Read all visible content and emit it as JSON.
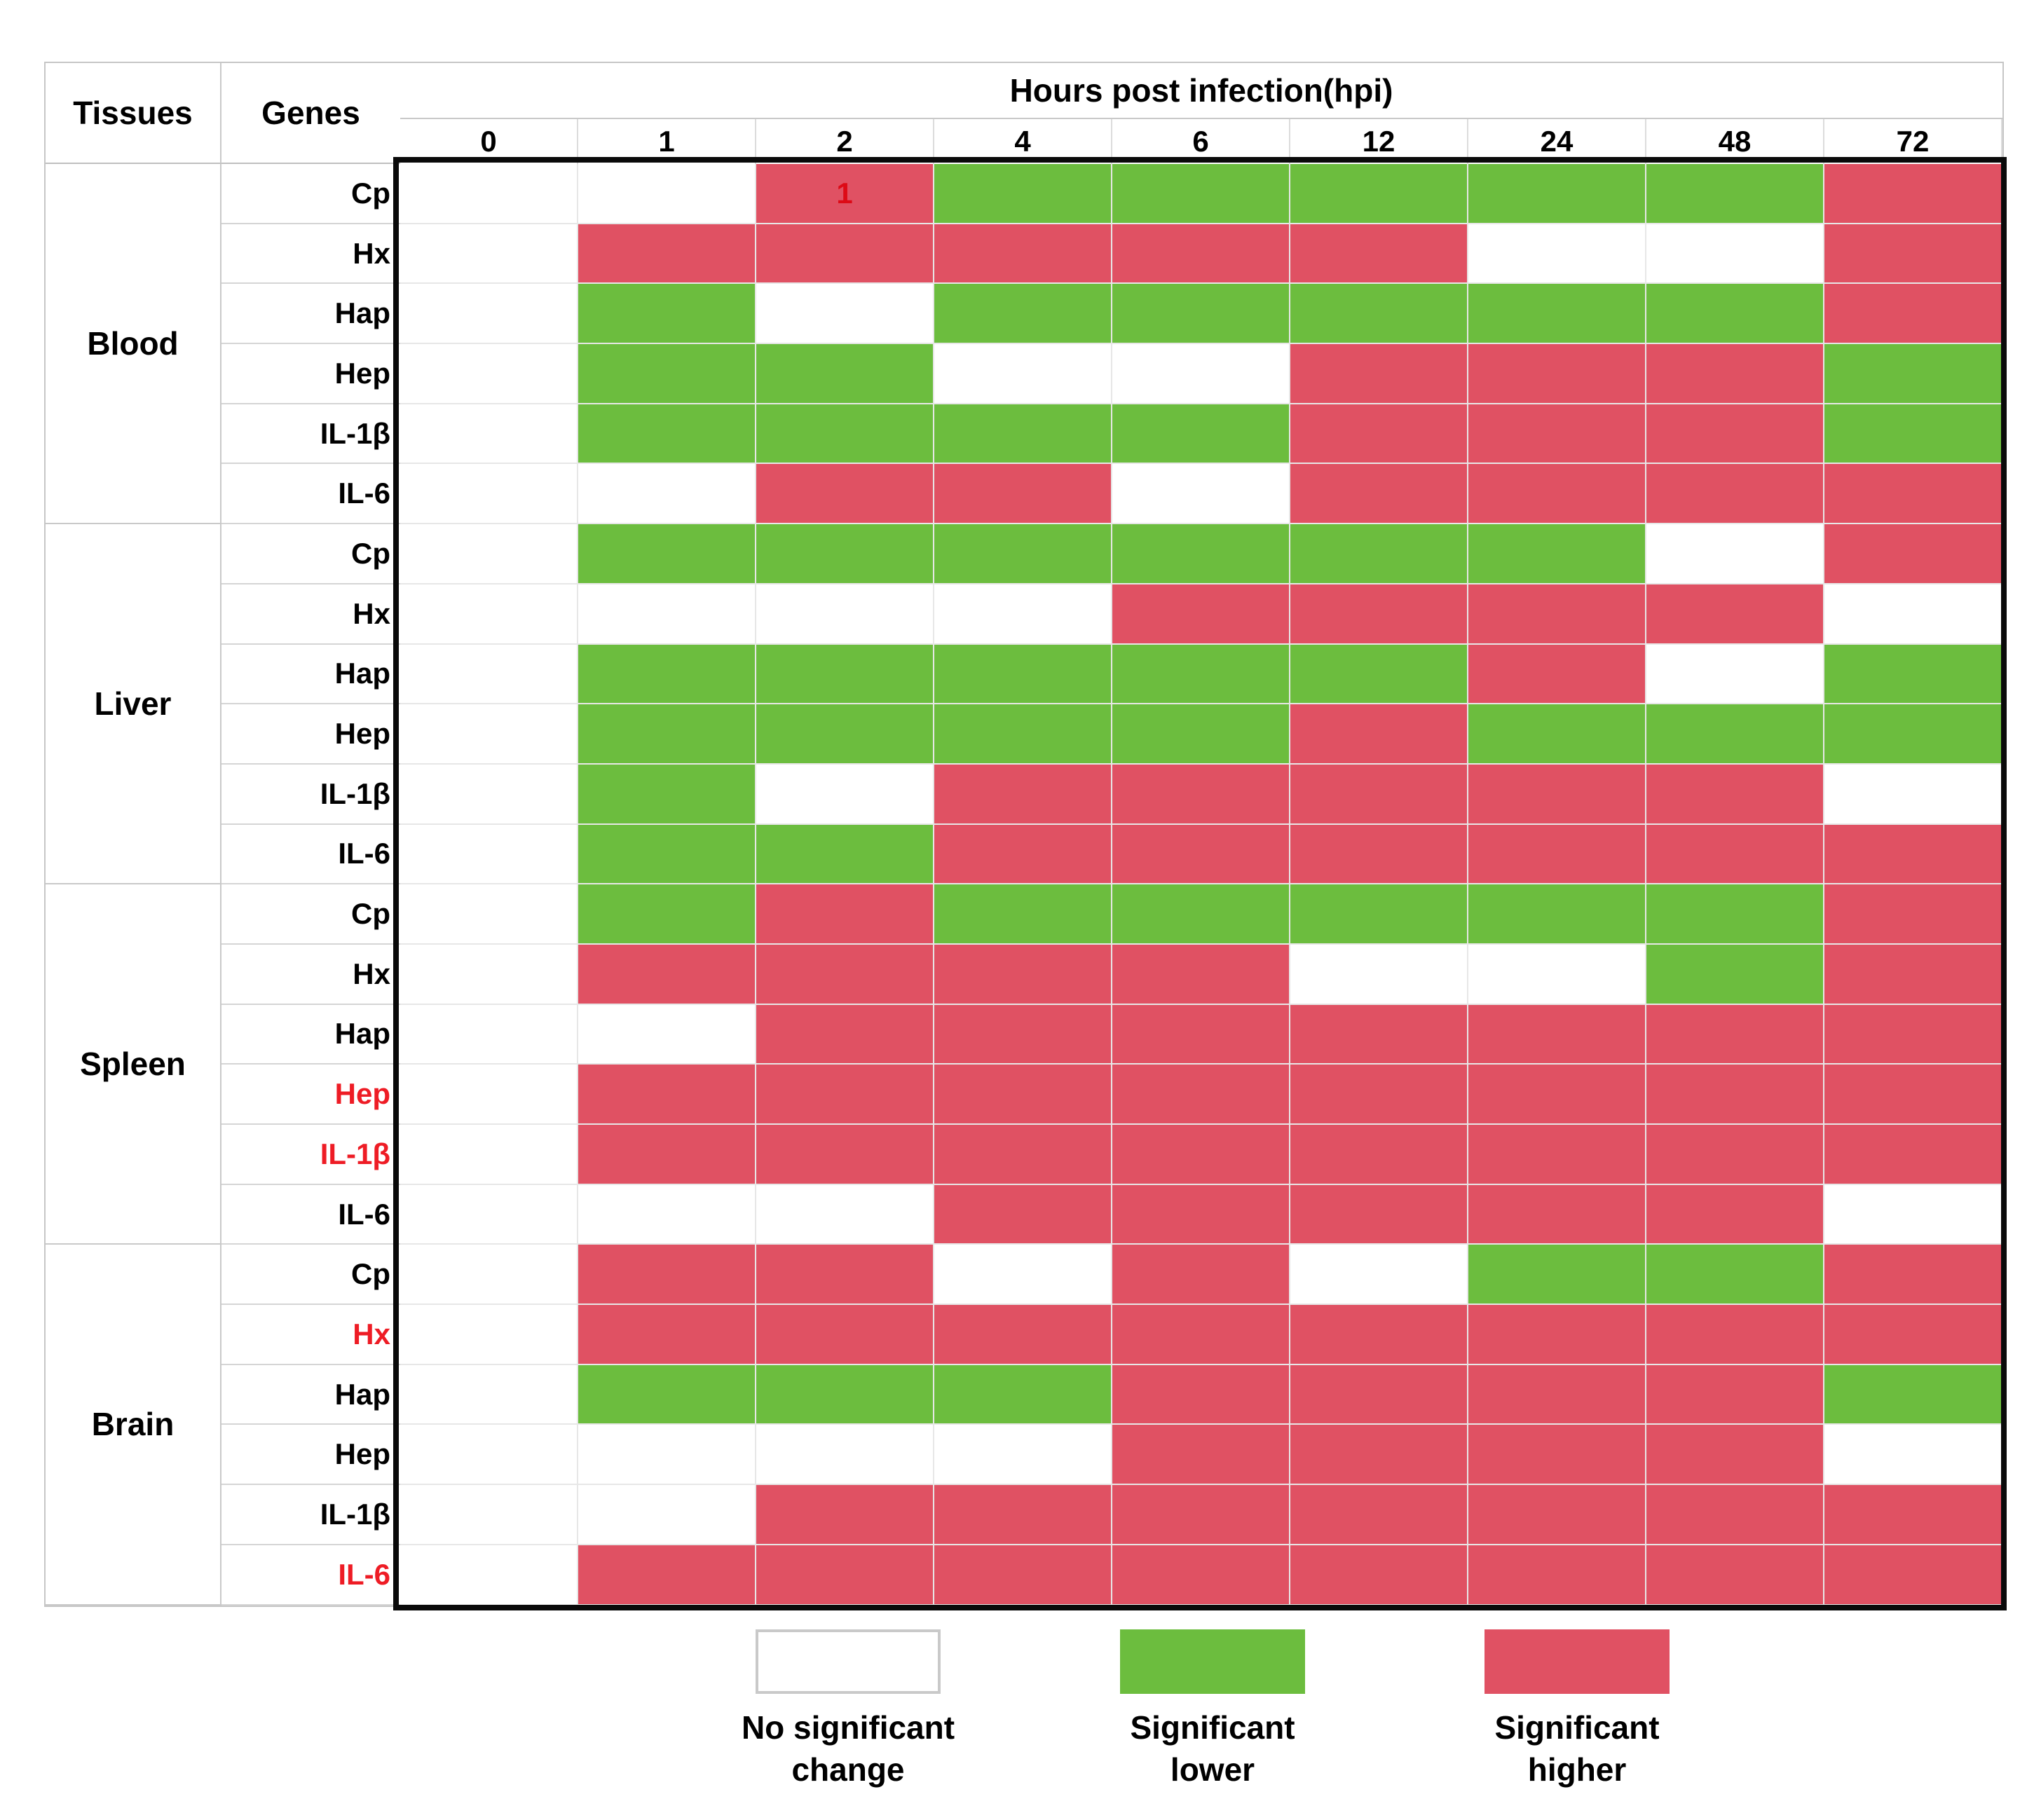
{
  "figure": {
    "tissues_label": "Tissues",
    "genes_label": "Genes",
    "hpi_label": "Hours post infection(hpi)"
  },
  "colors": {
    "none": "#ffffff",
    "lower": "#6cbd3e",
    "higher": "#e05163",
    "gene_label_red": "#ee1c25",
    "note_red": "#dd0a16"
  },
  "legend": {
    "items": [
      {
        "key": "none",
        "label": "No significant\nchange"
      },
      {
        "key": "lower",
        "label": "Significant\nlower"
      },
      {
        "key": "higher",
        "label": "Significant\nhigher"
      }
    ]
  },
  "chart_data": {
    "type": "heatmap",
    "title": "Hours post infection(hpi)",
    "columns": [
      "0",
      "1",
      "2",
      "4",
      "6",
      "12",
      "24",
      "48",
      "72"
    ],
    "value_legend": {
      "none": "No significant change",
      "lower": "Significant lower",
      "higher": "Significant higher"
    },
    "annotations": [
      {
        "tissue": "Blood",
        "gene": "Cp",
        "column_index": 2,
        "text": "1"
      }
    ],
    "tissues": [
      {
        "name": "Blood",
        "genes": [
          {
            "name": "Cp",
            "values": [
              "none",
              "none",
              "higher",
              "lower",
              "lower",
              "lower",
              "lower",
              "lower",
              "higher"
            ]
          },
          {
            "name": "Hx",
            "values": [
              "none",
              "higher",
              "higher",
              "higher",
              "higher",
              "higher",
              "none",
              "none",
              "higher"
            ]
          },
          {
            "name": "Hap",
            "values": [
              "none",
              "lower",
              "none",
              "lower",
              "lower",
              "lower",
              "lower",
              "lower",
              "higher"
            ]
          },
          {
            "name": "Hep",
            "values": [
              "none",
              "lower",
              "lower",
              "none",
              "none",
              "higher",
              "higher",
              "higher",
              "lower"
            ]
          },
          {
            "name": "IL-1β",
            "values": [
              "none",
              "lower",
              "lower",
              "lower",
              "lower",
              "higher",
              "higher",
              "higher",
              "lower"
            ]
          },
          {
            "name": "IL-6",
            "values": [
              "none",
              "none",
              "higher",
              "higher",
              "none",
              "higher",
              "higher",
              "higher",
              "higher"
            ]
          }
        ]
      },
      {
        "name": "Liver",
        "genes": [
          {
            "name": "Cp",
            "values": [
              "none",
              "lower",
              "lower",
              "lower",
              "lower",
              "lower",
              "lower",
              "none",
              "higher"
            ]
          },
          {
            "name": "Hx",
            "values": [
              "none",
              "none",
              "none",
              "none",
              "higher",
              "higher",
              "higher",
              "higher",
              "none"
            ]
          },
          {
            "name": "Hap",
            "values": [
              "none",
              "lower",
              "lower",
              "lower",
              "lower",
              "lower",
              "higher",
              "none",
              "lower"
            ]
          },
          {
            "name": "Hep",
            "values": [
              "none",
              "lower",
              "lower",
              "lower",
              "lower",
              "higher",
              "lower",
              "lower",
              "lower"
            ]
          },
          {
            "name": "IL-1β",
            "values": [
              "none",
              "lower",
              "none",
              "higher",
              "higher",
              "higher",
              "higher",
              "higher",
              "none"
            ]
          },
          {
            "name": "IL-6",
            "values": [
              "none",
              "lower",
              "lower",
              "higher",
              "higher",
              "higher",
              "higher",
              "higher",
              "higher"
            ]
          }
        ]
      },
      {
        "name": "Spleen",
        "genes": [
          {
            "name": "Cp",
            "values": [
              "none",
              "lower",
              "higher",
              "lower",
              "lower",
              "lower",
              "lower",
              "lower",
              "higher"
            ]
          },
          {
            "name": "Hx",
            "values": [
              "none",
              "higher",
              "higher",
              "higher",
              "higher",
              "none",
              "none",
              "lower",
              "higher"
            ]
          },
          {
            "name": "Hap",
            "values": [
              "none",
              "none",
              "higher",
              "higher",
              "higher",
              "higher",
              "higher",
              "higher",
              "higher"
            ]
          },
          {
            "name": "Hep",
            "label_red": true,
            "values": [
              "none",
              "higher",
              "higher",
              "higher",
              "higher",
              "higher",
              "higher",
              "higher",
              "higher"
            ]
          },
          {
            "name": "IL-1β",
            "label_red": true,
            "values": [
              "none",
              "higher",
              "higher",
              "higher",
              "higher",
              "higher",
              "higher",
              "higher",
              "higher"
            ]
          },
          {
            "name": "IL-6",
            "values": [
              "none",
              "none",
              "none",
              "higher",
              "higher",
              "higher",
              "higher",
              "higher",
              "none"
            ]
          }
        ]
      },
      {
        "name": "Brain",
        "genes": [
          {
            "name": "Cp",
            "values": [
              "none",
              "higher",
              "higher",
              "none",
              "higher",
              "none",
              "lower",
              "lower",
              "higher"
            ]
          },
          {
            "name": "Hx",
            "label_red": true,
            "values": [
              "none",
              "higher",
              "higher",
              "higher",
              "higher",
              "higher",
              "higher",
              "higher",
              "higher"
            ]
          },
          {
            "name": "Hap",
            "values": [
              "none",
              "lower",
              "lower",
              "lower",
              "higher",
              "higher",
              "higher",
              "higher",
              "lower"
            ]
          },
          {
            "name": "Hep",
            "values": [
              "none",
              "none",
              "none",
              "none",
              "higher",
              "higher",
              "higher",
              "higher",
              "none"
            ]
          },
          {
            "name": "IL-1β",
            "values": [
              "none",
              "none",
              "higher",
              "higher",
              "higher",
              "higher",
              "higher",
              "higher",
              "higher"
            ]
          },
          {
            "name": "IL-6",
            "label_red": true,
            "values": [
              "none",
              "higher",
              "higher",
              "higher",
              "higher",
              "higher",
              "higher",
              "higher",
              "higher"
            ]
          }
        ]
      }
    ]
  }
}
